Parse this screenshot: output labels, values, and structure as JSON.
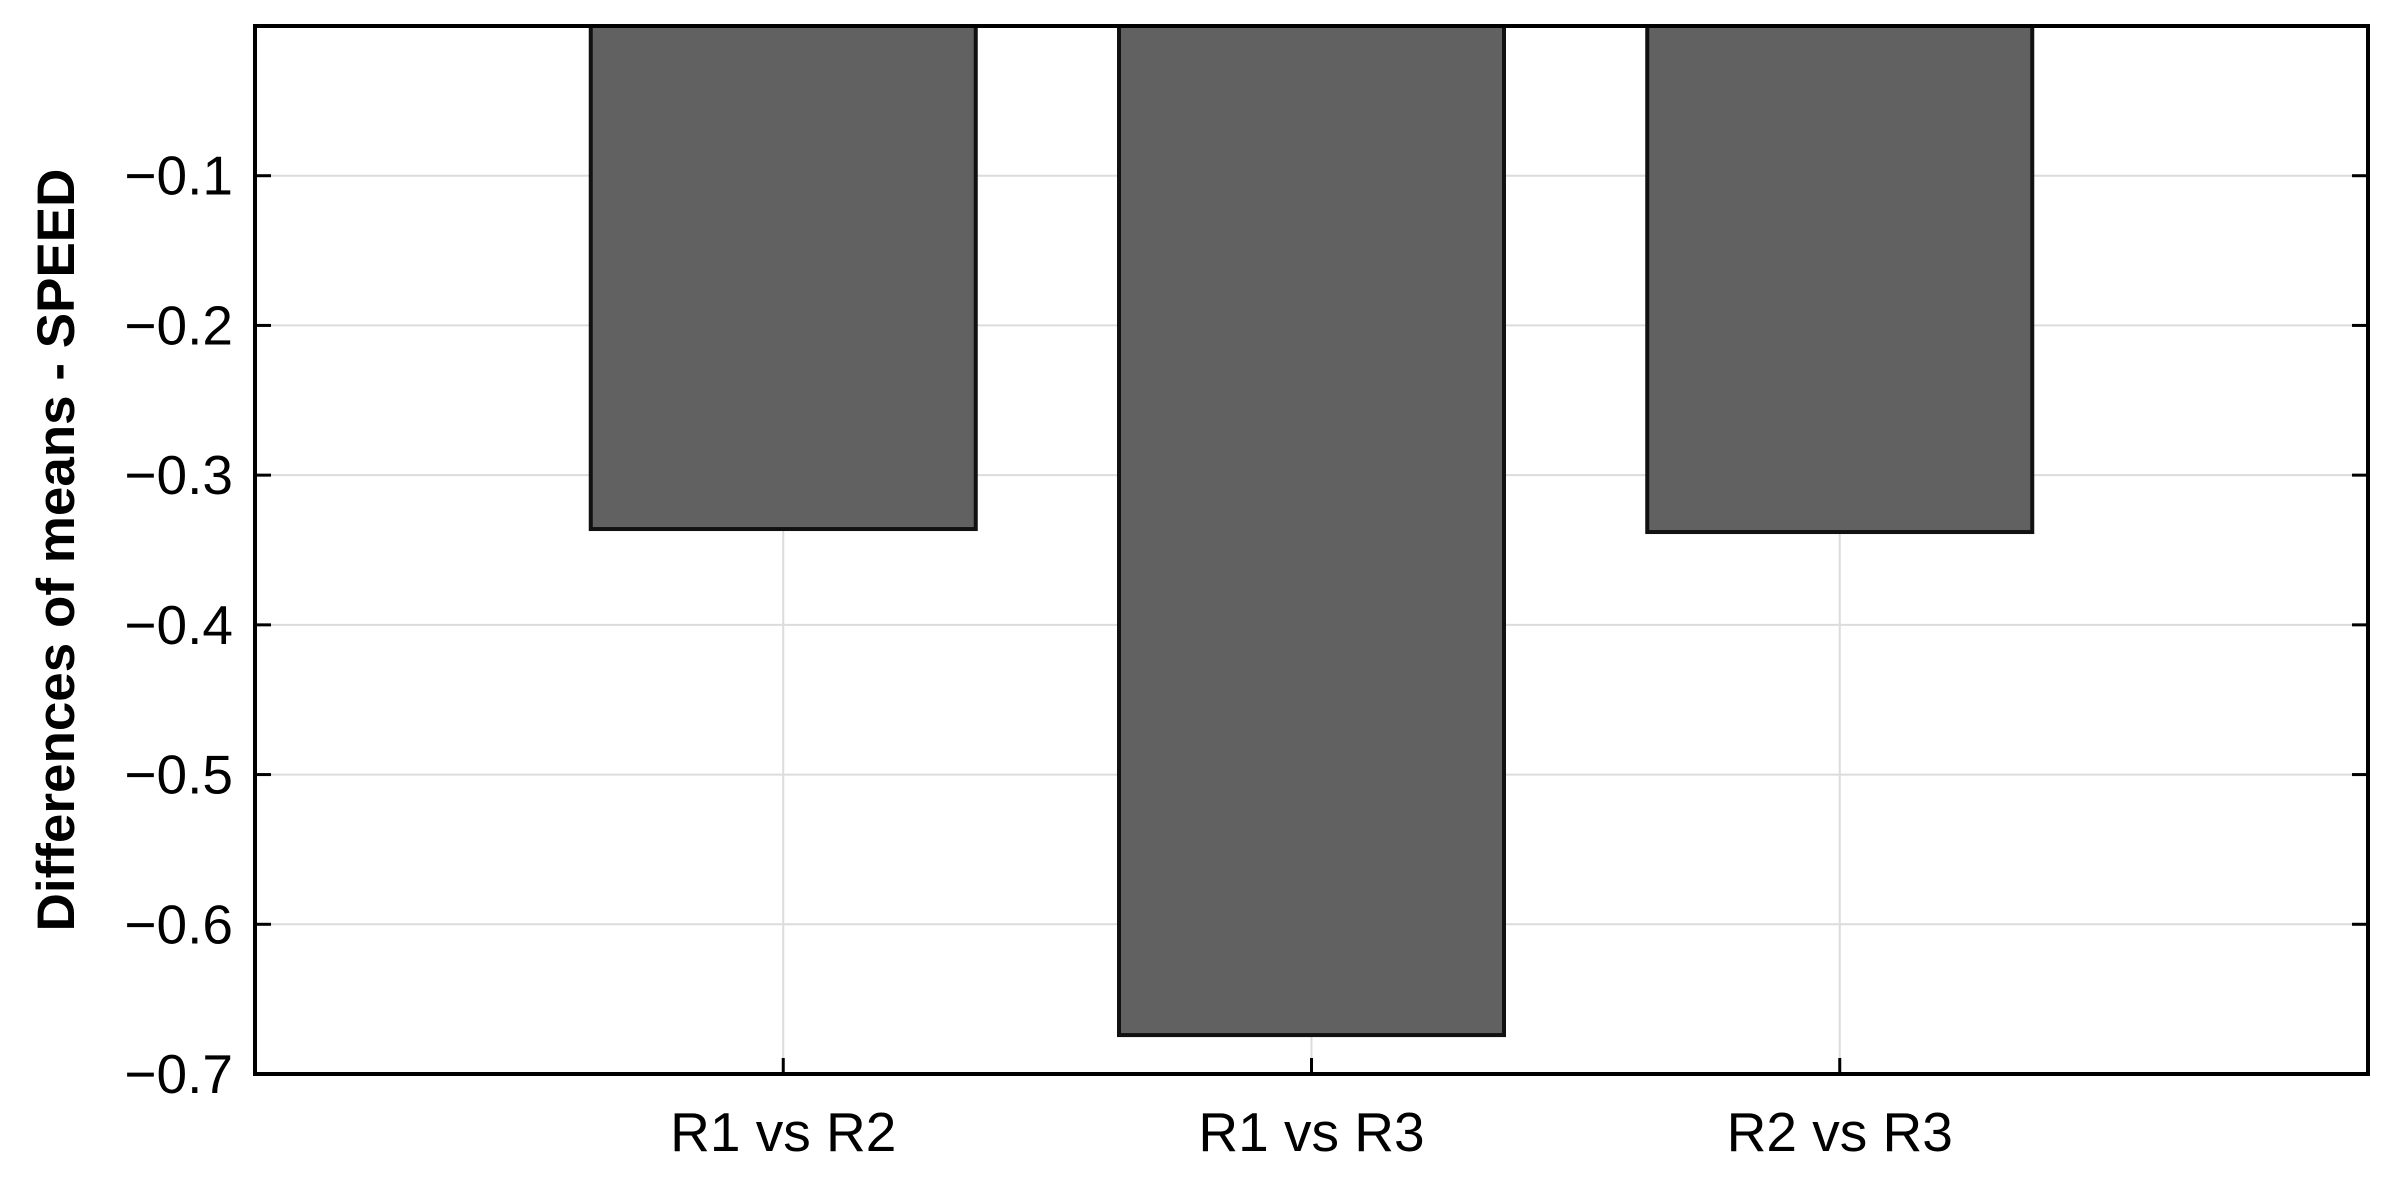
{
  "chart_data": {
    "type": "bar",
    "categories": [
      "R1 vs R2",
      "R1 vs R3",
      "R2 vs R3"
    ],
    "values": [
      -0.336,
      -0.674,
      -0.338
    ],
    "title": "",
    "xlabel": "",
    "ylabel": "Differences of means - SPEED",
    "ylim": [
      -0.7,
      0
    ],
    "y_ticks": [
      -0.1,
      -0.2,
      -0.3,
      -0.4,
      -0.5,
      -0.6,
      -0.7
    ],
    "y_tick_labels": [
      "−0.1",
      "−0.2",
      "−0.3",
      "−0.4",
      "−0.5",
      "−0.6",
      "−0.7"
    ],
    "grid": true,
    "bar_color": "#616161",
    "bar_edge_color": "#111111",
    "grid_color": "#dcdcdc"
  }
}
